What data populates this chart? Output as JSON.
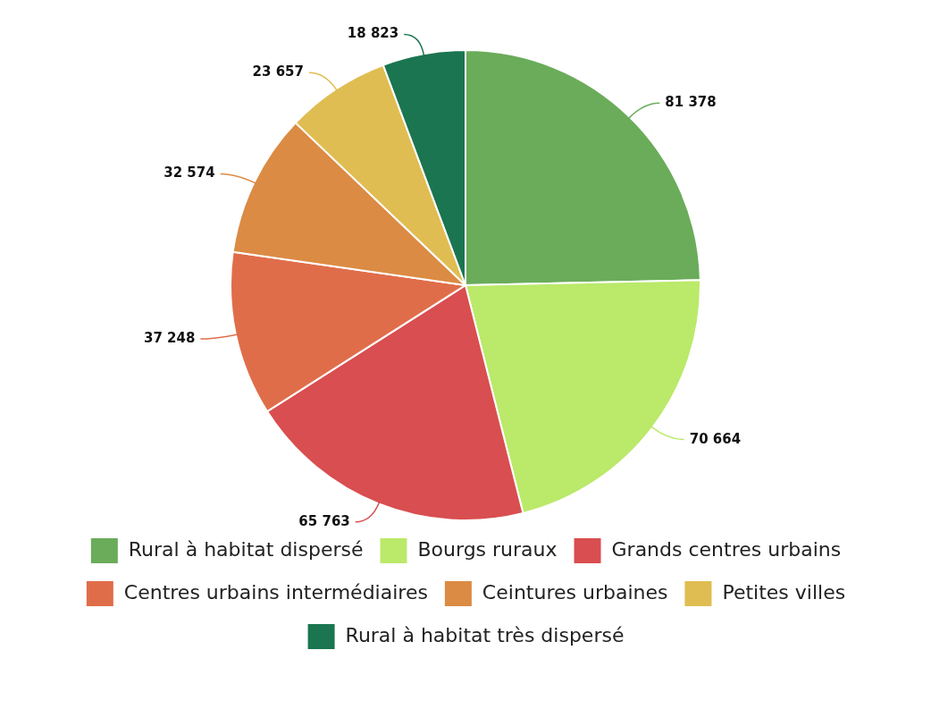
{
  "chart_data": {
    "type": "pie",
    "categories": [
      "Rural à habitat dispersé",
      "Bourgs ruraux",
      "Grands centres urbains",
      "Centres urbains intermédiaires",
      "Ceintures urbaines",
      "Petites villes",
      "Rural à habitat très dispersé"
    ],
    "values": [
      81378,
      70664,
      65763,
      37248,
      32574,
      23657,
      18823
    ],
    "value_labels": [
      "81 378",
      "70 664",
      "65 763",
      "37 248",
      "32 574",
      "23 657",
      "18 823"
    ],
    "colors": [
      "#6aac5a",
      "#bbe96a",
      "#d94e50",
      "#e06d4a",
      "#db8b43",
      "#e0bd52",
      "#1b7550"
    ],
    "legend": "bottom"
  }
}
